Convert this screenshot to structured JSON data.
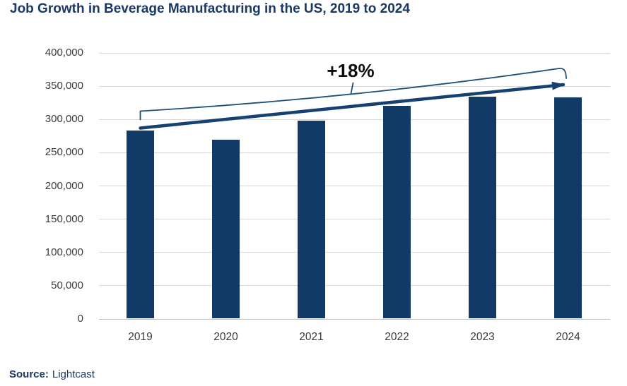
{
  "title": "Job Growth in Beverage Manufacturing in the US, 2019 to 2024",
  "annotation": {
    "growth_label": "+18%"
  },
  "source": {
    "label": "Source:",
    "value": "Lightcast"
  },
  "colors": {
    "title_text": "#1A3866",
    "bar": "#123A66",
    "arrow": "#16406F",
    "bracket": "#1F4E79",
    "gridline": "#D9D9D9",
    "axis_line": "#BFBFBF",
    "tick_text": "#3A3A3A",
    "annotation_text": "#0D0D0D",
    "source_text": "#1A3866"
  },
  "chart_data": {
    "type": "bar",
    "title": "Job Growth in Beverage Manufacturing in the US, 2019 to 2024",
    "categories": [
      "2019",
      "2020",
      "2021",
      "2022",
      "2023",
      "2024"
    ],
    "values": [
      283000,
      270000,
      298000,
      320000,
      334000,
      333500
    ],
    "xlabel": "",
    "ylabel": "",
    "ylim": [
      0,
      400000
    ],
    "ytick_step": 50000,
    "ytick_labels": [
      "0",
      "50,000",
      "100,000",
      "150,000",
      "200,000",
      "250,000",
      "300,000",
      "350,000",
      "400,000"
    ],
    "grid": "horizontal",
    "legend": "none",
    "annotation": "+18% growth arrow from 2019 bar top to 2024 bar top"
  }
}
